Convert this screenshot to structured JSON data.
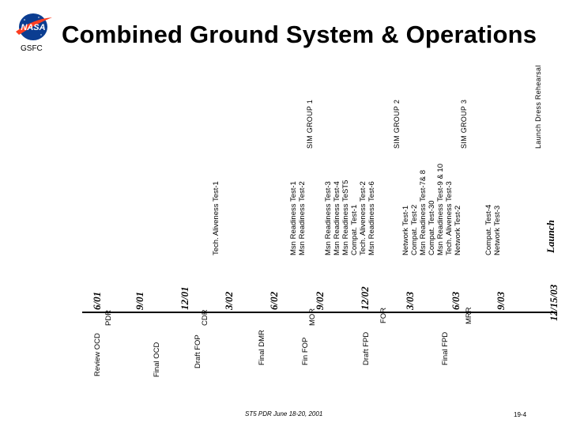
{
  "header": {
    "title": "Combined Ground System & Operations",
    "org": "GSFC",
    "logo_text": "NASA",
    "logo_colors": {
      "blue": "#0b3d91",
      "red": "#fc3d21"
    }
  },
  "timeline": {
    "dates": [
      "6/01",
      "9/01",
      "12/01",
      "3/02",
      "6/02",
      "9/02",
      "12/02",
      "3/03",
      "6/03",
      "9/03",
      "12/15/03"
    ],
    "end_label": "Launch"
  },
  "milestones": {
    "below_1": [
      "PDR",
      "CDR",
      "MOR",
      "FOR",
      "MRR"
    ],
    "below_2": [
      "Review OCD",
      "Final OCD",
      "Draft FOP",
      "Final DMR",
      "Fin FOP",
      "Draft FPD",
      "Final FPD"
    ]
  },
  "events": {
    "tech_aliveness_1": "Tech. Aliveness Test-1",
    "group_a": [
      "Msn Readiness Test-1",
      "Msn Readiness Test-2"
    ],
    "group_b": [
      "Msn Readiness Test-3",
      "Msn Readiness Test-4",
      "Msn Readiness TeST5",
      "Compat. Test-1",
      "Tech. Aliveness Test-2",
      "Msn Readiness Test-6"
    ],
    "group_c": [
      "Network Test-1",
      "Compat. Test-2",
      "Msn Readiness Test-7& 8",
      "Compat. Test-30",
      "Msn Readiness  Test-9 & 10",
      "Tech. Aliveness Test-3",
      "Network Test-2"
    ],
    "group_d": [
      "Compat. Test-4",
      "Network Test-3"
    ]
  },
  "sim_groups": [
    "SIM GROUP 1",
    "SIM GROUP 2",
    "SIM GROUP 3",
    "Launch Dress Rehearsal"
  ],
  "footer": {
    "left": "ST5 PDR June 18-20, 2001",
    "right": "19-4"
  }
}
